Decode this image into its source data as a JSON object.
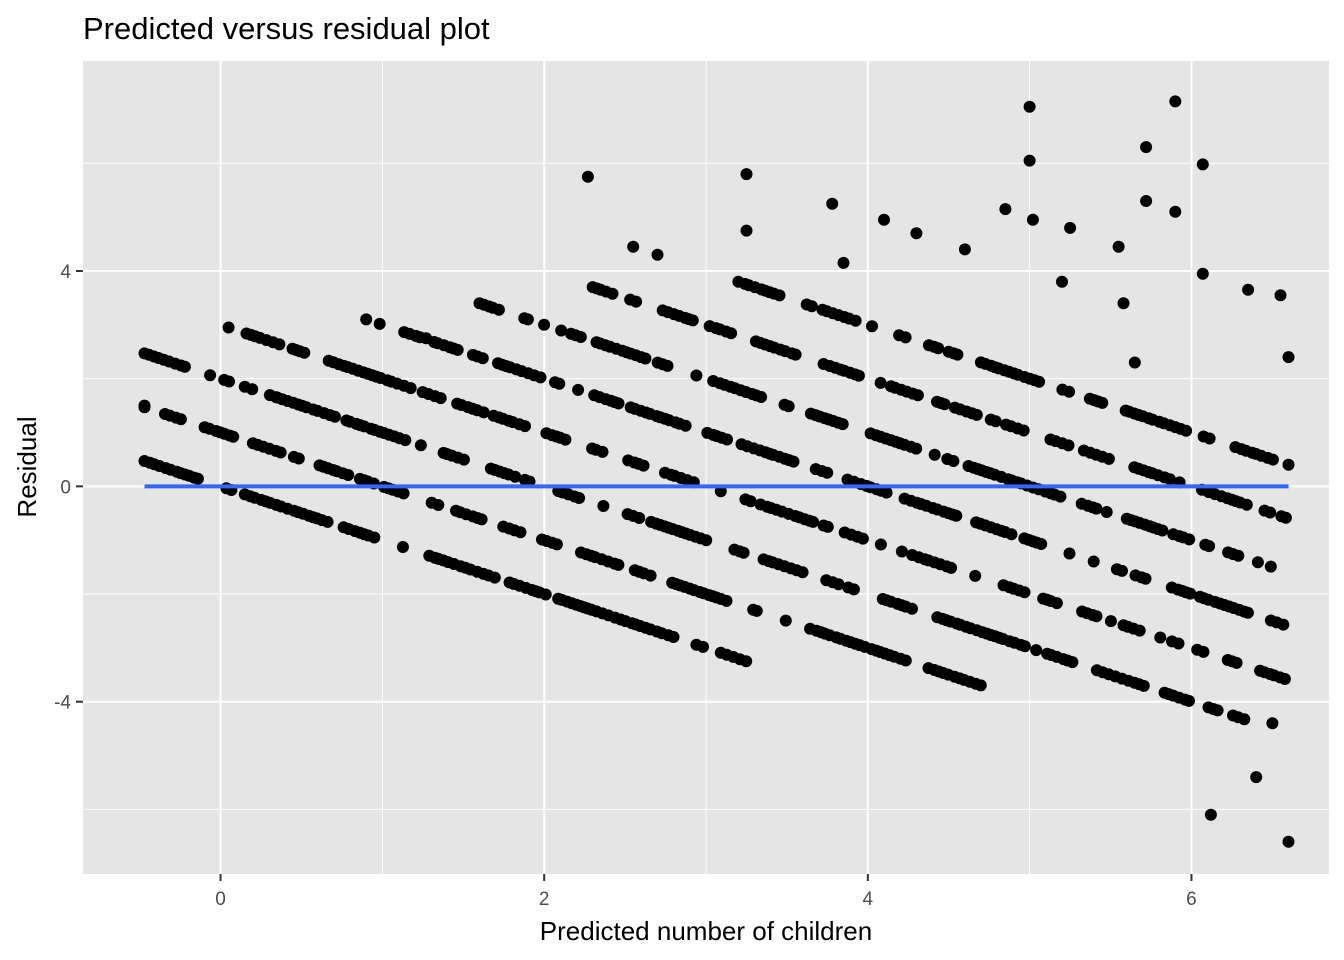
{
  "chart_data": {
    "type": "scatter",
    "title": "Predicted versus residual plot",
    "xlabel": "Predicted number of children",
    "ylabel": "Residual",
    "xlim": [
      -0.85,
      6.85
    ],
    "ylim": [
      -7.2,
      7.9
    ],
    "x_ticks": [
      0,
      2,
      4,
      6
    ],
    "y_ticks": [
      -4,
      0,
      4
    ],
    "x_minor": [
      -1,
      1,
      3,
      5
    ],
    "y_minor": [
      -6,
      -2,
      2,
      6
    ],
    "grid": true,
    "legend": "none",
    "colors": {
      "panel": "#e5e5e5",
      "grid": "#ffffff",
      "points": "#000000",
      "fit_line": "#3366ff"
    },
    "fit_line": {
      "x": [
        -0.47,
        6.6
      ],
      "y": [
        0,
        0
      ]
    },
    "band_offsets": [
      0,
      1,
      2,
      3,
      4,
      5,
      6,
      7
    ],
    "band_note": "Residual = offset - predicted; points lie on diagonal bands",
    "bands": [
      {
        "offset": 0,
        "x_range": [
          -0.47,
          3.25
        ]
      },
      {
        "offset": 1,
        "x_range": [
          -0.47,
          4.7
        ]
      },
      {
        "offset": 2,
        "x_range": [
          -0.47,
          6.4
        ]
      },
      {
        "offset": 3,
        "x_range": [
          0.05,
          6.6
        ]
      },
      {
        "offset": 4,
        "x_range": [
          0.9,
          6.6
        ]
      },
      {
        "offset": 5,
        "x_range": [
          1.6,
          6.6
        ]
      },
      {
        "offset": 6,
        "x_range": [
          2.3,
          6.6
        ]
      },
      {
        "offset": 7,
        "x_range": [
          3.2,
          6.6
        ]
      }
    ],
    "extra_points": [
      [
        -0.47,
        1.5
      ],
      [
        0.15,
        1.85
      ],
      [
        0.35,
        1.65
      ],
      [
        0.85,
        2.15
      ],
      [
        1.27,
        2.75
      ],
      [
        2.27,
        5.75
      ],
      [
        3.25,
        5.8
      ],
      [
        3.25,
        4.75
      ],
      [
        3.78,
        5.25
      ],
      [
        3.85,
        4.15
      ],
      [
        4.85,
        5.15
      ],
      [
        5.0,
        7.05
      ],
      [
        5.0,
        6.05
      ],
      [
        5.02,
        4.95
      ],
      [
        5.2,
        3.8
      ],
      [
        5.55,
        4.45
      ],
      [
        5.58,
        3.4
      ],
      [
        5.72,
        6.3
      ],
      [
        5.72,
        5.3
      ],
      [
        5.9,
        7.15
      ],
      [
        5.9,
        5.1
      ],
      [
        6.07,
        5.98
      ],
      [
        6.07,
        3.95
      ],
      [
        6.35,
        3.65
      ],
      [
        6.6,
        2.4
      ],
      [
        6.6,
        0.4
      ],
      [
        6.6,
        -6.6
      ],
      [
        6.12,
        -6.1
      ],
      [
        6.4,
        -5.4
      ],
      [
        6.55,
        3.55
      ],
      [
        2.55,
        4.45
      ],
      [
        2.7,
        4.3
      ],
      [
        4.1,
        4.95
      ],
      [
        4.6,
        4.4
      ],
      [
        5.25,
        4.8
      ],
      [
        4.3,
        4.7
      ],
      [
        5.65,
        2.3
      ],
      [
        6.5,
        -4.4
      ]
    ]
  }
}
